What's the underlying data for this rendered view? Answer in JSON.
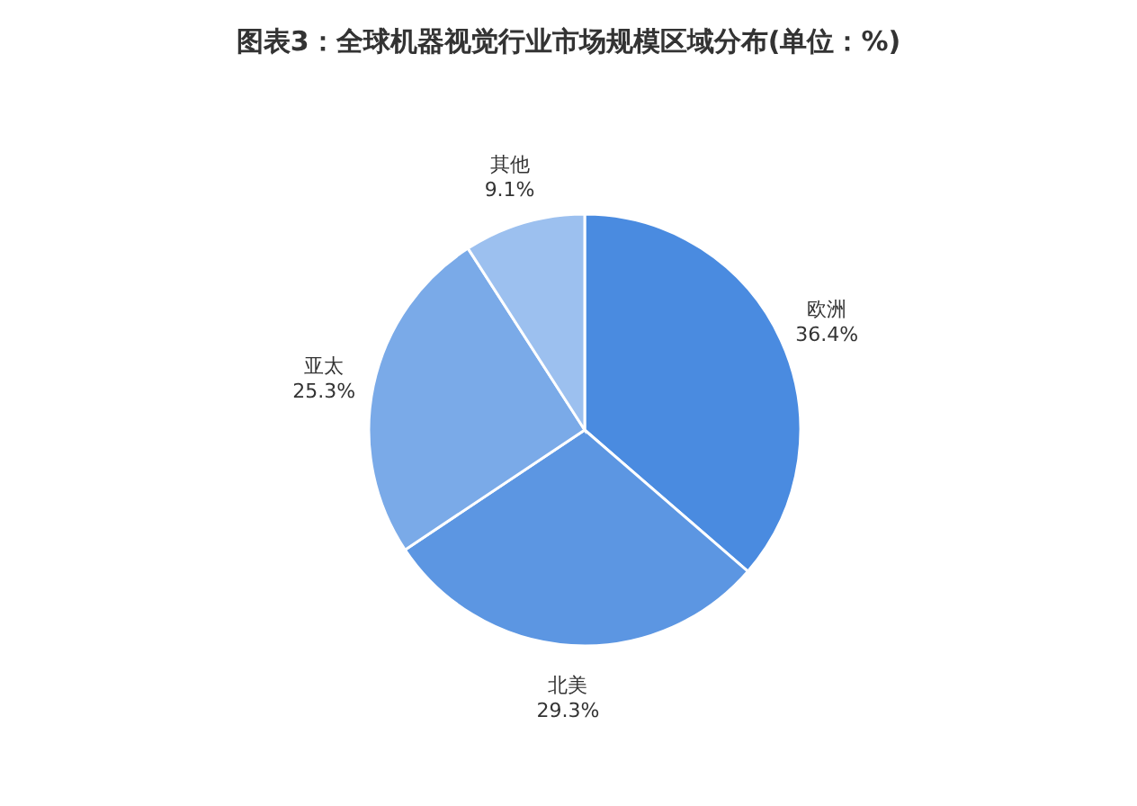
{
  "chart_data": {
    "type": "pie",
    "title": "图表3：全球机器视觉行业市场规模区域分布(单位：%)",
    "categories": [
      "欧洲",
      "北美",
      "亚太",
      "其他"
    ],
    "values": [
      36.4,
      29.3,
      25.3,
      9.1
    ],
    "value_labels": [
      "36.4%",
      "29.3%",
      "25.3%",
      "9.1%"
    ],
    "colors": [
      "#4a8be0",
      "#5c96e2",
      "#7aaae8",
      "#9cc0ef"
    ]
  }
}
